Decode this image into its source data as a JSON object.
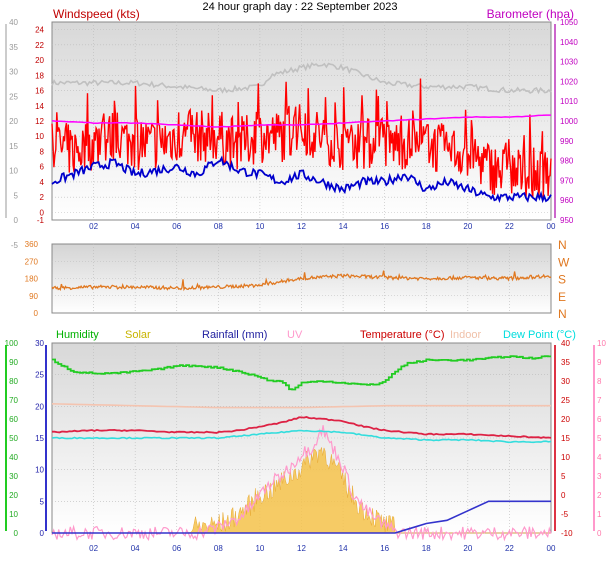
{
  "title": "24 hour graph day : 22 September 2023",
  "x_tick_labels": [
    "02",
    "04",
    "06",
    "08",
    "10",
    "12",
    "14",
    "16",
    "18",
    "20",
    "22",
    "00"
  ],
  "chart_data": [
    {
      "type": "line",
      "title": "",
      "x_unit": "hour",
      "xlim": [
        0,
        24
      ],
      "left_axis": {
        "label": "Windspeed (kts)",
        "ylim": [
          -1,
          25
        ],
        "ticks": [
          "24",
          "22",
          "20",
          "18",
          "16",
          "14",
          "12",
          "10",
          "8",
          "6",
          "4",
          "2",
          "0",
          "-1"
        ]
      },
      "middle_axis": {
        "ylim": [
          0,
          40
        ],
        "ticks": [
          "40",
          "35",
          "30",
          "25",
          "20",
          "15",
          "10",
          "5",
          "0",
          "-5"
        ]
      },
      "right_axis": {
        "label": "Barometer (hpa)",
        "ylim": [
          950,
          1050
        ],
        "ticks": [
          "1050",
          "1040",
          "1030",
          "1020",
          "1010",
          "1000",
          "990",
          "980",
          "970",
          "960",
          "950"
        ]
      },
      "colors": {
        "wind": "#ff0000",
        "avg": "#0000cc",
        "gust": "#c0c0c0",
        "baro": "#ff00ff",
        "left_axis": "#c00000",
        "right_axis": "#c000c0"
      },
      "series": [
        {
          "name": "Windspeed (kts)",
          "axis": "left",
          "color": "#ff0000",
          "x": [
            0,
            1,
            2,
            3,
            4,
            5,
            6,
            7,
            8,
            9,
            10,
            11,
            12,
            13,
            14,
            15,
            16,
            17,
            18,
            19,
            20,
            21,
            22,
            23,
            24
          ],
          "values": [
            9,
            8,
            9,
            10,
            9,
            9,
            10,
            10,
            10,
            9,
            10,
            10,
            11,
            10,
            9,
            9,
            9,
            9,
            9,
            8,
            8,
            6,
            5,
            5,
            5
          ]
        },
        {
          "name": "",
          "axis": "left",
          "color": "#0000cc",
          "x": [
            0,
            1,
            2,
            3,
            4,
            5,
            6,
            7,
            8,
            9,
            10,
            11,
            12,
            13,
            14,
            15,
            16,
            17,
            18,
            19,
            20,
            21,
            22,
            23,
            24
          ],
          "values": [
            4,
            5,
            6,
            6.5,
            5,
            5.5,
            6,
            5,
            7,
            5.5,
            5,
            4,
            5,
            4,
            3,
            4,
            4,
            5,
            3,
            4,
            3,
            2,
            2,
            2,
            2
          ]
        },
        {
          "name": "",
          "axis": "left",
          "color": "#c0c0c0",
          "x": [
            0,
            2,
            4,
            6,
            8,
            10,
            10.5,
            12,
            13,
            14,
            15,
            16,
            18,
            20,
            22,
            24
          ],
          "values": [
            17,
            17,
            17,
            16.5,
            16,
            16.5,
            18,
            19,
            19.5,
            19,
            18,
            17,
            16.5,
            16.5,
            16,
            16
          ]
        },
        {
          "name": "Barometer (hpa)",
          "axis": "right",
          "color": "#ff00ff",
          "x": [
            0,
            2,
            4,
            6,
            8,
            10,
            12,
            14,
            16,
            18,
            20,
            22,
            24
          ],
          "values": [
            1000,
            999,
            999,
            998,
            997,
            998,
            998,
            999,
            1000,
            1001,
            1002,
            1002,
            1003
          ]
        }
      ]
    },
    {
      "type": "line",
      "title": "",
      "x_unit": "hour",
      "xlim": [
        0,
        24
      ],
      "ylim": [
        0,
        360
      ],
      "left_ticks": [
        "360",
        "270",
        "180",
        "90",
        "0"
      ],
      "right_labels": [
        "N",
        "W",
        "S",
        "E",
        "N"
      ],
      "colors": {
        "direction": "#e07820"
      },
      "series": [
        {
          "name": "",
          "color": "#e07820",
          "x": [
            0,
            2,
            4,
            6,
            8,
            10,
            10.5,
            12,
            14,
            16,
            18,
            20,
            22,
            24
          ],
          "values": [
            130,
            135,
            135,
            130,
            135,
            145,
            155,
            180,
            195,
            185,
            180,
            185,
            180,
            195
          ]
        }
      ]
    },
    {
      "type": "line",
      "title": "",
      "x_unit": "hour",
      "xlim": [
        0,
        24
      ],
      "legend": [
        "Humidity",
        "Solar",
        "Rainfall (mm)",
        "UV",
        "Temperature (°C)",
        "Indoor",
        "Dew Point (°C)"
      ],
      "legend_colors": [
        "#00b000",
        "#c8b400",
        "#2020a0",
        "#ff99cc",
        "#cc0000",
        "#f0c0a8",
        "#00dddd"
      ],
      "axis_humidity": {
        "ylim": [
          0,
          100
        ],
        "ticks": [
          "100",
          "90",
          "80",
          "70",
          "60",
          "50",
          "40",
          "30",
          "20",
          "10",
          "0"
        ]
      },
      "axis_rain": {
        "ylim": [
          0,
          30
        ],
        "ticks": [
          "30",
          "25",
          "20",
          "15",
          "10",
          "5",
          "0"
        ]
      },
      "axis_temp": {
        "ylim": [
          -10,
          40
        ],
        "ticks": [
          "40",
          "35",
          "30",
          "25",
          "20",
          "15",
          "10",
          "5",
          "0",
          "-5",
          "-10"
        ]
      },
      "axis_uv": {
        "ylim": [
          0,
          10
        ],
        "ticks": [
          "10",
          "9",
          "8",
          "7",
          "6",
          "5",
          "4",
          "3",
          "2",
          "1",
          "0"
        ]
      },
      "series": [
        {
          "name": "Humidity",
          "axis": "humidity",
          "color": "#22cc22",
          "x": [
            0,
            1,
            2,
            3,
            4,
            5,
            6,
            7,
            8,
            9,
            10,
            10.5,
            11,
            11.5,
            12,
            13,
            14,
            15,
            15.5,
            16,
            16.5,
            17,
            18,
            20,
            22,
            23,
            24
          ],
          "values": [
            91,
            85,
            84,
            84,
            85,
            86,
            88,
            88,
            87,
            85,
            82,
            80,
            80,
            75,
            79,
            80,
            79,
            78,
            78,
            80,
            85,
            89,
            91,
            91,
            93,
            92,
            93
          ]
        },
        {
          "name": "Temperature (°C)",
          "axis": "temp",
          "color": "#dd2244",
          "x": [
            0,
            2,
            4,
            6,
            8,
            9,
            10,
            11,
            12,
            13,
            14,
            15,
            16,
            17,
            18,
            20,
            22,
            24
          ],
          "values": [
            16.5,
            17,
            17,
            16.5,
            16.5,
            17,
            18,
            19,
            20.5,
            20,
            19.5,
            18,
            17,
            16.5,
            16,
            16,
            15.5,
            15
          ]
        },
        {
          "name": "Indoor",
          "axis": "temp",
          "color": "#f4c4b0",
          "x": [
            0,
            4,
            8,
            12,
            16,
            20,
            24
          ],
          "values": [
            24,
            23.5,
            23,
            23,
            23.5,
            23.5,
            23.5
          ]
        },
        {
          "name": "Dew Point (°C)",
          "axis": "temp",
          "color": "#33dddd",
          "x": [
            0,
            2,
            4,
            6,
            8,
            10,
            12,
            14,
            16,
            18,
            20,
            22,
            24
          ],
          "values": [
            15,
            15,
            15,
            15,
            15,
            16,
            17,
            16.5,
            15,
            14.5,
            14.5,
            14,
            14
          ]
        },
        {
          "name": "Rainfall (mm)",
          "axis": "rain",
          "color": "#3333cc",
          "x": [
            0,
            16.5,
            17,
            17.5,
            18,
            19,
            20,
            21,
            22,
            23,
            24
          ],
          "values": [
            0,
            0,
            0.5,
            1,
            1.5,
            2,
            3.5,
            5,
            5,
            5,
            5
          ]
        },
        {
          "name": "Solar",
          "axis": "temp",
          "type": "area",
          "color": "#f5c24a",
          "x": [
            0,
            6.5,
            7,
            8,
            8.5,
            9,
            9.5,
            10,
            10.5,
            11,
            11.5,
            12,
            12.5,
            13,
            13.5,
            14,
            14.5,
            15,
            15.5,
            16,
            16.5,
            17,
            24
          ],
          "values": [
            -10,
            -10,
            -9.5,
            -9,
            -8,
            -6,
            -4,
            -1,
            0,
            2,
            4,
            6,
            9,
            11,
            7,
            3,
            -2,
            -5,
            -7,
            -9,
            -9.8,
            -10,
            -10
          ]
        },
        {
          "name": "UV",
          "axis": "uv",
          "color": "#ff99cc",
          "x": [
            0,
            7,
            8,
            9,
            9.5,
            10,
            10.5,
            11,
            11.5,
            12,
            12.5,
            13,
            13.5,
            14,
            14.5,
            15,
            15.5,
            16,
            16.5,
            17,
            24
          ],
          "values": [
            0,
            0,
            0.3,
            0.8,
            1.3,
            2,
            2.6,
            3,
            3.5,
            4.2,
            4.5,
            5.5,
            4.5,
            3.5,
            2,
            1.3,
            0.8,
            0.4,
            0.1,
            0,
            0
          ]
        }
      ]
    }
  ]
}
